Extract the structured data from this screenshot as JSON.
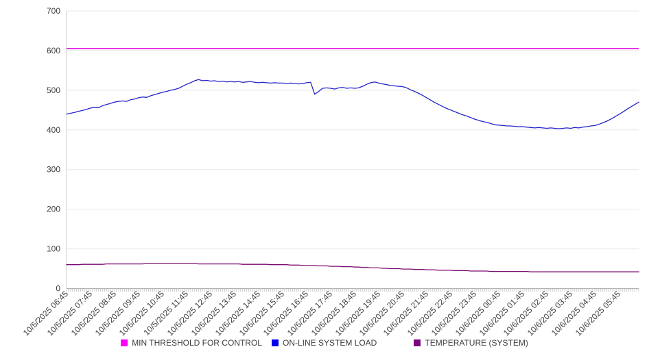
{
  "chart_data": {
    "type": "line",
    "x_tick_labels": [
      "10/5/2025 06:45",
      "10/5/2025 07:45",
      "10/5/2025 08:45",
      "10/5/2025 09:45",
      "10/5/2025 10:45",
      "10/5/2025 11:45",
      "10/5/2025 12:45",
      "10/5/2025 13:45",
      "10/5/2025 14:45",
      "10/5/2025 15:45",
      "10/5/2025 16:45",
      "10/5/2025 17:45",
      "10/5/2025 18:45",
      "10/5/2025 19:45",
      "10/5/2025 20:45",
      "10/5/2025 21:45",
      "10/5/2025 22:45",
      "10/5/2025 23:45",
      "10/6/2025 00:45",
      "10/6/2025 01:45",
      "10/6/2025 02:45",
      "10/6/2025 03:45",
      "10/6/2025 04:45",
      "10/6/2025 05:45"
    ],
    "y_ticks": [
      0,
      100,
      200,
      300,
      400,
      500,
      600,
      700
    ],
    "ylim": [
      0,
      700
    ],
    "grid": true,
    "legend_position": "bottom",
    "sample_interval_minutes": 10,
    "minor_tick_minutes": 5,
    "style": {
      "grid_color": "#e8e8e8",
      "axis_color": "#b3b3b3",
      "left_axis_color": "#cccccc",
      "tick_color": "#c9c9c9",
      "label_color": "#404040"
    },
    "series": [
      {
        "name": "MIN THRESHOLD FOR CONTROL",
        "line_color": "#e100e1",
        "swatch_color": "#ff00ff",
        "constant": 605
      },
      {
        "name": "ON-LINE SYSTEM LOAD",
        "line_color": "#2323cb",
        "swatch_color": "#0000ee",
        "values": [
          440,
          442,
          444,
          447,
          449,
          452,
          455,
          457,
          456,
          461,
          464,
          467,
          470,
          472,
          473,
          472,
          476,
          478,
          481,
          483,
          482,
          486,
          489,
          492,
          495,
          497,
          500,
          502,
          505,
          510,
          515,
          519,
          524,
          527,
          524,
          525,
          523,
          524,
          522,
          523,
          521,
          522,
          521,
          522,
          520,
          521,
          522,
          520,
          519,
          520,
          519,
          518,
          519,
          518,
          518,
          517,
          518,
          517,
          516,
          517,
          519,
          520,
          490,
          497,
          505,
          506,
          505,
          503,
          506,
          507,
          505,
          506,
          505,
          506,
          510,
          515,
          519,
          521,
          518,
          516,
          514,
          512,
          511,
          510,
          509,
          506,
          501,
          497,
          492,
          487,
          481,
          475,
          469,
          464,
          459,
          454,
          450,
          446,
          442,
          438,
          435,
          431,
          427,
          424,
          421,
          419,
          416,
          413,
          412,
          411,
          410,
          410,
          409,
          408,
          408,
          407,
          406,
          405,
          406,
          405,
          404,
          405,
          404,
          403,
          404,
          405,
          404,
          406,
          405,
          407,
          408,
          410,
          411,
          414,
          418,
          422,
          427,
          433,
          439,
          445,
          452,
          458,
          464,
          470
        ]
      },
      {
        "name": "TEMPERATURE (SYSTEM)",
        "line_color": "#7a0a72",
        "swatch_color": "#7b067e",
        "values": [
          60,
          60,
          60,
          60,
          61,
          61,
          61,
          61,
          61,
          61,
          62,
          62,
          62,
          62,
          62,
          62,
          62,
          62,
          62,
          62,
          63,
          63,
          63,
          63,
          63,
          63,
          63,
          63,
          63,
          63,
          63,
          63,
          63,
          62,
          62,
          62,
          62,
          62,
          62,
          62,
          62,
          62,
          62,
          62,
          61,
          61,
          61,
          61,
          61,
          61,
          61,
          60,
          60,
          60,
          60,
          60,
          59,
          59,
          59,
          58,
          58,
          58,
          58,
          57,
          57,
          57,
          56,
          56,
          56,
          55,
          55,
          55,
          54,
          54,
          53,
          53,
          52,
          52,
          52,
          51,
          51,
          50,
          50,
          50,
          49,
          49,
          49,
          48,
          48,
          48,
          47,
          47,
          47,
          46,
          46,
          46,
          46,
          45,
          45,
          45,
          45,
          44,
          44,
          44,
          44,
          44,
          43,
          43,
          43,
          43,
          43,
          43,
          43,
          43,
          43,
          43,
          42,
          42,
          42,
          42,
          42,
          42,
          42,
          42,
          42,
          42,
          42,
          42,
          42,
          42,
          42,
          42,
          42,
          42,
          42,
          42,
          42,
          42,
          42,
          42,
          42,
          42,
          42,
          42
        ]
      }
    ]
  },
  "legend": {
    "items": [
      {
        "label": "MIN THRESHOLD FOR CONTROL"
      },
      {
        "label": "ON-LINE SYSTEM LOAD"
      },
      {
        "label": "TEMPERATURE (SYSTEM)"
      }
    ]
  }
}
